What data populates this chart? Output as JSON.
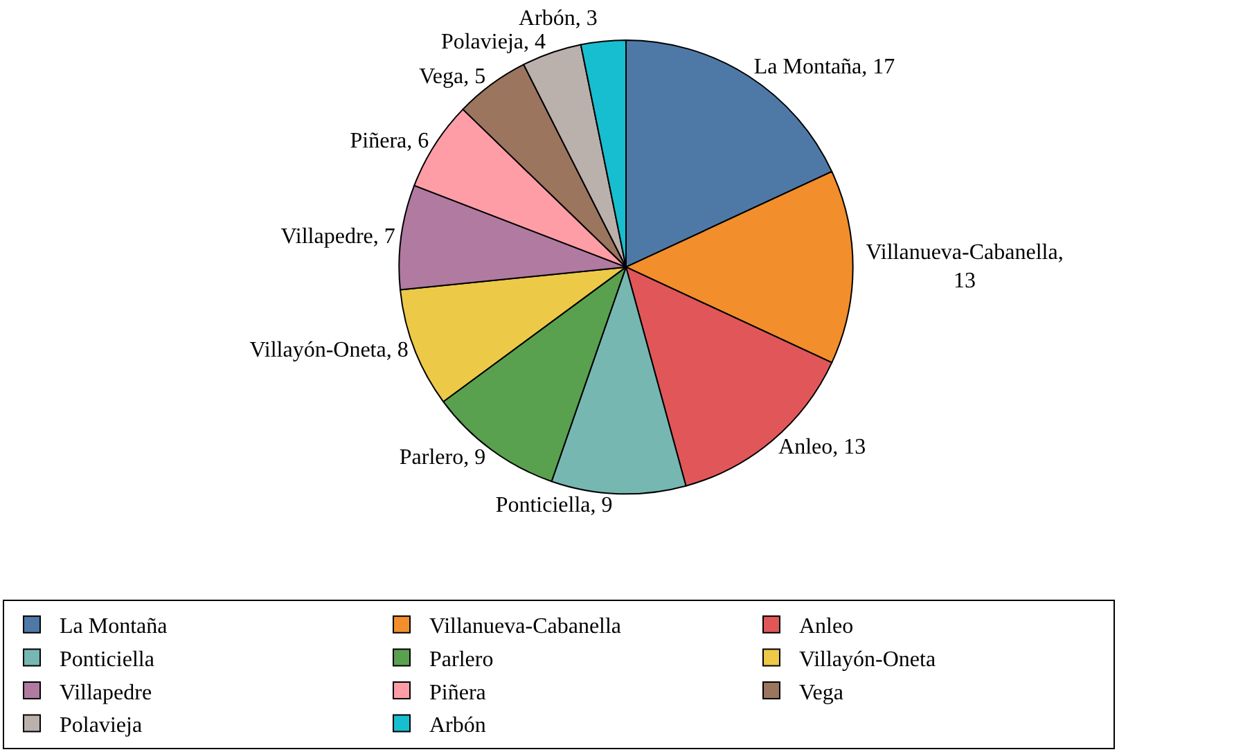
{
  "chart_data": {
    "type": "pie",
    "categories": [
      "La Montaña",
      "Villanueva-Cabanella",
      "Anleo",
      "Ponticiella",
      "Parlero",
      "Villayón-Oneta",
      "Villapedre",
      "Piñera",
      "Vega",
      "Polavieja",
      "Arbón"
    ],
    "values": [
      17,
      13,
      13,
      9,
      9,
      8,
      7,
      6,
      5,
      4,
      3
    ],
    "colors": [
      "#4e79a7",
      "#f28e2b",
      "#e15759",
      "#76b7b2",
      "#59a14f",
      "#edc948",
      "#b07aa1",
      "#ff9da7",
      "#9c755f",
      "#bab0ac",
      "#17becf"
    ],
    "value_labels": [
      "La Montaña, 17",
      "Villanueva-Cabanella, 13",
      "Anleo, 13",
      "Ponticiella, 9",
      "Parlero, 9",
      "Villayón-Oneta, 8",
      "Villapedre, 7",
      "Piñera, 6",
      "Vega, 5",
      "Polavieja, 4",
      "Arbón, 3"
    ],
    "legend": "bottom"
  }
}
